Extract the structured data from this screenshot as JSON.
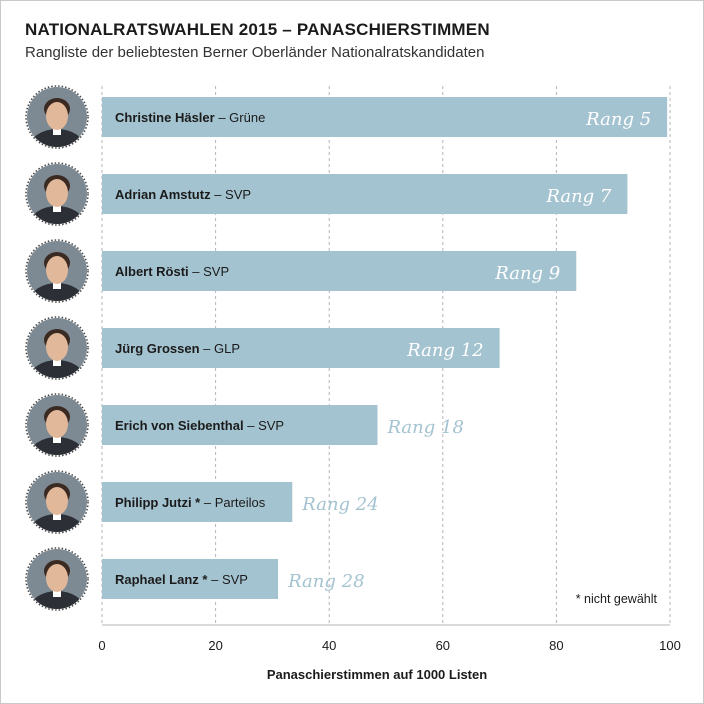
{
  "title": "NATIONALRATSWAHLEN 2015 – PANASCHIERSTIMMEN",
  "subtitle": "Rangliste der beliebtesten Berner Oberländer Nationalratskandidaten",
  "footnote": "* nicht gewählt",
  "colors": {
    "bar": "#a4c3d0",
    "rank_on_bar": "#ffffff",
    "rank_off_bar": "#a4c3d0",
    "grid": "#b5b5b5",
    "text": "#1b1b1b"
  },
  "chart_data": {
    "type": "bar",
    "orientation": "horizontal",
    "title": "NATIONALRATSWAHLEN 2015 – PANASCHIERSTIMMEN",
    "subtitle": "Rangliste der beliebtesten Berner Oberländer Nationalratskandidaten",
    "xlabel": "Panaschierstimmen auf 1000 Listen",
    "xlim": [
      0,
      100
    ],
    "xticks": [
      0,
      20,
      40,
      60,
      80,
      100
    ],
    "grid": true,
    "items": [
      {
        "name": "Christine Häsler",
        "star": "",
        "party": "Grüne",
        "value": 99.5,
        "rank": "Rang 5"
      },
      {
        "name": "Adrian Amstutz",
        "star": "",
        "party": "SVP",
        "value": 92.5,
        "rank": "Rang 7"
      },
      {
        "name": "Albert Rösti",
        "star": "",
        "party": "SVP",
        "value": 83.5,
        "rank": "Rang 9"
      },
      {
        "name": "Jürg Grossen",
        "star": "",
        "party": "GLP",
        "value": 70,
        "rank": "Rang 12"
      },
      {
        "name": "Erich von Siebenthal",
        "star": "",
        "party": "SVP",
        "value": 48.5,
        "rank": "Rang 18"
      },
      {
        "name": "Philipp Jutzi",
        "star": " *",
        "party": "Parteilos",
        "value": 33.5,
        "rank": "Rang 24"
      },
      {
        "name": "Raphael Lanz",
        "star": " *",
        "party": "SVP",
        "value": 31,
        "rank": "Rang 28"
      }
    ]
  }
}
